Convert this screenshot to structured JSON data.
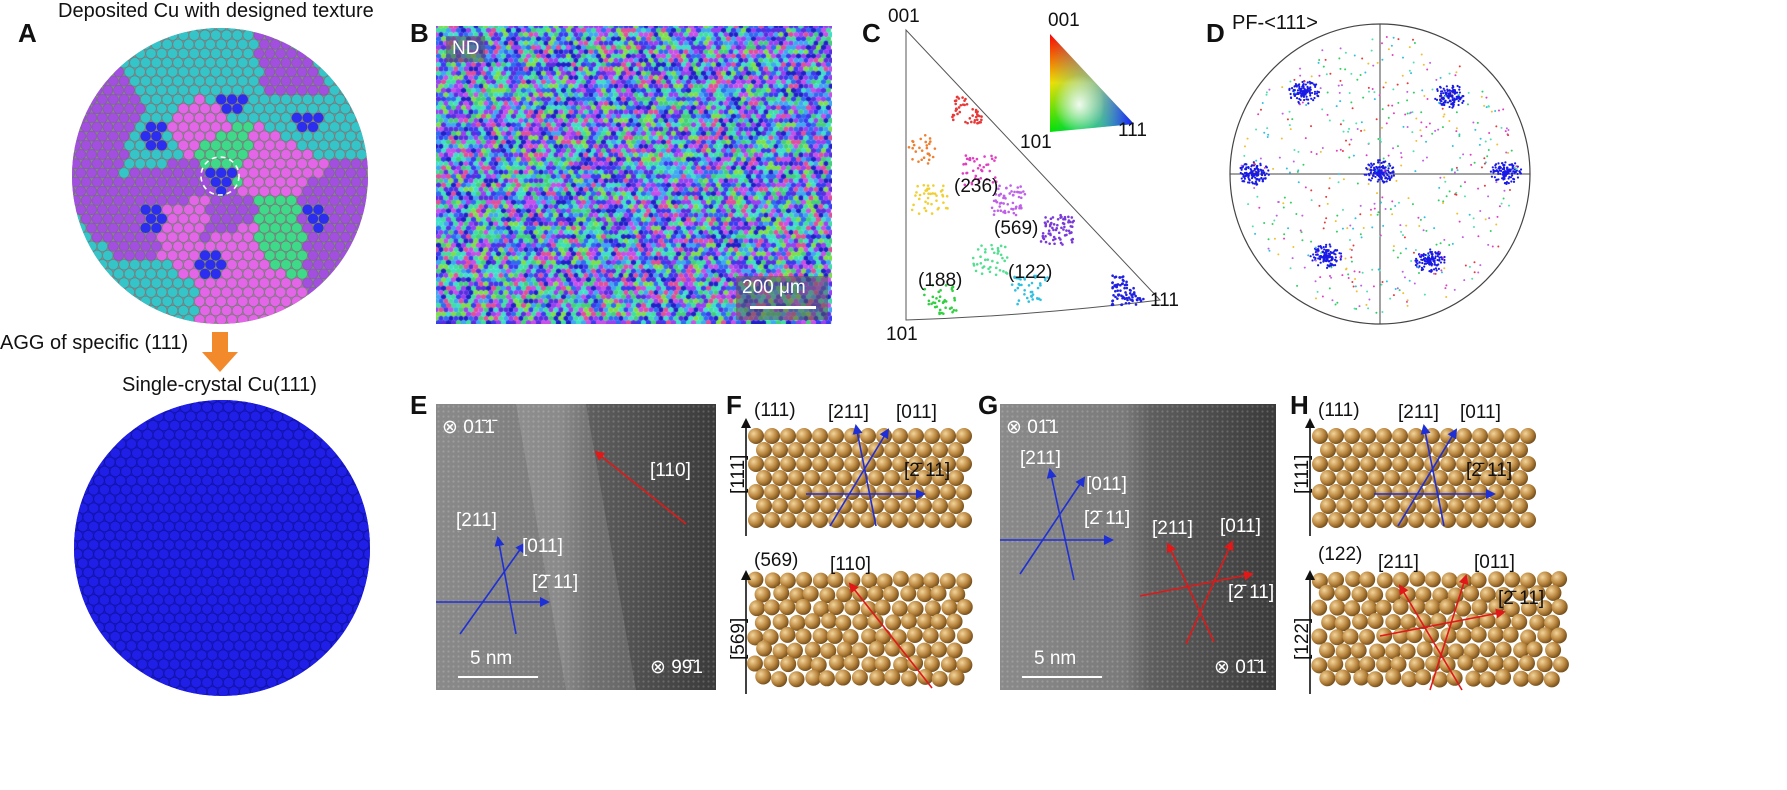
{
  "panels": {
    "A": {
      "label": "A",
      "top_title": "Deposited Cu with designed texture",
      "arrow_caption": "AGG of specific (111)",
      "bottom_title": "Single-crystal Cu(111)"
    },
    "B": {
      "label": "B",
      "nd": "ND",
      "scale": "200 μm"
    },
    "C": {
      "label": "C",
      "corners": {
        "c001": "001",
        "c101": "101",
        "c111": "111"
      },
      "key": {
        "k001": "001",
        "k101": "101",
        "k111": "111"
      },
      "annotations": {
        "a236": "(236)",
        "a569": "(569)",
        "a122": "(122)",
        "a188": "(188)"
      }
    },
    "D": {
      "label": "D",
      "title": "PF-<111>"
    },
    "E": {
      "label": "E",
      "zone_top": "⊗ 01̄1̄",
      "zone_bottom": "⊗ 99̄1",
      "dir110": "[110]",
      "dir211": "[211]",
      "dir011": "[011]",
      "dirm211": "[2̄ 11]",
      "scale": "5 nm"
    },
    "F": {
      "label": "F",
      "plane_top": "(111)",
      "axis_top": "[111]",
      "t211": "[211]",
      "t011": "[011]",
      "tm211": "[2̄ 11]",
      "plane_bottom": "(569)",
      "axis_bottom": "[569]",
      "b110": "[110]"
    },
    "G": {
      "label": "G",
      "zone_top": "⊗ 01̄1",
      "zone_bottom": "⊗ 01̄1",
      "b211": "[211]",
      "b011": "[011]",
      "bm211": "[2̄ 11]",
      "r211": "[211]",
      "r011": "[011]",
      "rm211": "[2̄ 11]",
      "scale": "5 nm"
    },
    "H": {
      "label": "H",
      "plane_top": "(111)",
      "axis_top": "[111]",
      "t211": "[211]",
      "t011": "[011]",
      "tm211": "[2̄ 11]",
      "plane_bottom": "(122)",
      "axis_bottom": "[122]",
      "b211": "[211]",
      "b011": "[011]",
      "bm211": "[2̄ 11]"
    }
  },
  "colors": {
    "blue_arrow": "#1f2fd6",
    "red_arrow": "#e01818",
    "cu_atom": "#b8843c",
    "single_crystal": "#1f1fe8",
    "grain_green": "#3fd98a",
    "grain_cyan": "#35c4c8",
    "grain_purple": "#a24fe0",
    "grain_pink": "#e466e8",
    "grain_blue": "#2b2ef0"
  }
}
